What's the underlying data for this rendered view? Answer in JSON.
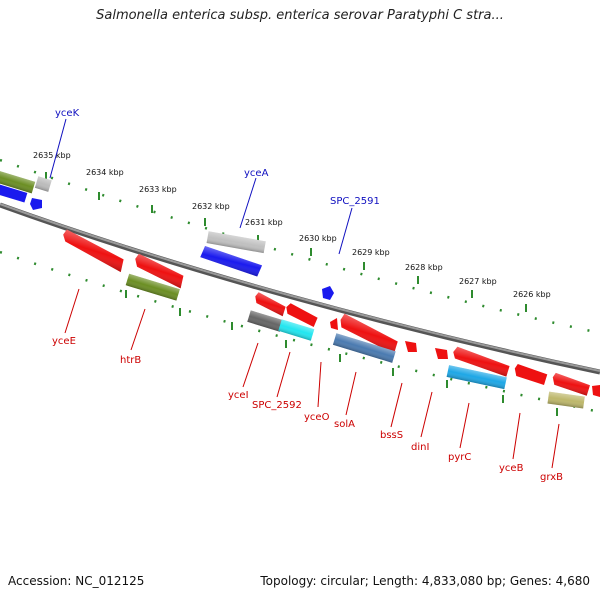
{
  "title": "Salmonella enterica subsp. enterica serovar Paratyphi C stra...",
  "accession": "Accession: NC_012125",
  "summary": "Topology: circular; Length: 4,833,080 bp; Genes: 4,680",
  "colors": {
    "backbone": "#808080",
    "tick_green": "#2e8b2e",
    "label_blue": "#1010c0",
    "label_red": "#cc0000",
    "gene_red": "#ee1111",
    "gene_blue": "#1a1aee",
    "gene_olive": "#6b8e23",
    "gene_gray": "#bbbbbb",
    "gene_darkgray": "#666666",
    "gene_cyan": "#22e6f0",
    "gene_steel": "#4a7ab0",
    "gene_skyblue": "#1ea7e6",
    "gene_khaki": "#bdb76b"
  },
  "kbp_labels": [
    "2635 kbp",
    "2634 kbp",
    "2633 kbp",
    "2632 kbp",
    "2631 kbp",
    "2630 kbp",
    "2629 kbp",
    "2628 kbp",
    "2627 kbp",
    "2626 kbp"
  ],
  "gene_labels_top": [
    "yceK",
    "yceA",
    "SPC_2591"
  ],
  "gene_labels_bottom": [
    "yceE",
    "htrB",
    "yceI",
    "SPC_2592",
    "yceO",
    "solA",
    "bssS",
    "dinI",
    "pyrC",
    "yceB",
    "grxB"
  ]
}
